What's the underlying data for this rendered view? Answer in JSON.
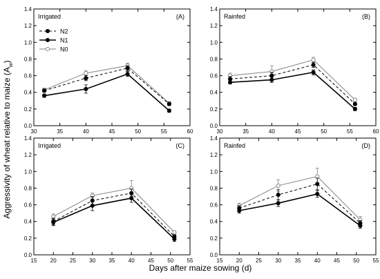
{
  "figure": {
    "ylabel": "Aggressivity of wheat relative to maize (A",
    "ylabel_sub": "w",
    "ylabel_end": ")",
    "xlabel": "Days after maize sowing (d)"
  },
  "legend": {
    "entries": [
      {
        "name": "N2",
        "style": "dashed",
        "marker": "filled",
        "color": "#000000"
      },
      {
        "name": "N1",
        "style": "solid-bold",
        "marker": "filled",
        "color": "#000000"
      },
      {
        "name": "N0",
        "style": "solid-thin",
        "marker": "open",
        "color": "#808080"
      }
    ]
  },
  "chart_data": [
    {
      "type": "line",
      "label": "(A)",
      "condition": "Irrigated",
      "x": [
        32,
        40,
        48,
        56
      ],
      "xlim": [
        30,
        60
      ],
      "xticks": [
        30,
        35,
        40,
        45,
        50,
        55,
        60
      ],
      "ylim": [
        0.0,
        1.4
      ],
      "yticks": [
        "0.0",
        "0.2",
        "0.4",
        "0.6",
        "0.8",
        "1.0",
        "1.2",
        "1.4"
      ],
      "series": [
        {
          "name": "N2",
          "values": [
            0.42,
            0.57,
            0.69,
            0.26
          ],
          "err": [
            0.02,
            0.03,
            0.03,
            0.02
          ]
        },
        {
          "name": "N1",
          "values": [
            0.36,
            0.44,
            0.62,
            0.18
          ],
          "err": [
            0.02,
            0.05,
            0.03,
            0.02
          ]
        },
        {
          "name": "N0",
          "values": [
            0.43,
            0.63,
            0.72,
            0.27
          ],
          "err": [
            0.02,
            0.03,
            0.03,
            0.02
          ]
        }
      ]
    },
    {
      "type": "line",
      "label": "(B)",
      "condition": "Rainfed",
      "x": [
        32,
        40,
        48,
        56
      ],
      "xlim": [
        30,
        60
      ],
      "xticks": [
        30,
        35,
        40,
        45,
        50,
        55,
        60
      ],
      "ylim": [
        0.0,
        1.4
      ],
      "yticks": [
        "0.0",
        "0.2",
        "0.4",
        "0.6",
        "0.8",
        "1.0",
        "1.2",
        "1.4"
      ],
      "series": [
        {
          "name": "N2",
          "values": [
            0.56,
            0.6,
            0.73,
            0.26
          ],
          "err": [
            0.03,
            0.04,
            0.03,
            0.02
          ]
        },
        {
          "name": "N1",
          "values": [
            0.52,
            0.55,
            0.64,
            0.2
          ],
          "err": [
            0.02,
            0.03,
            0.03,
            0.02
          ]
        },
        {
          "name": "N0",
          "values": [
            0.6,
            0.65,
            0.79,
            0.31
          ],
          "err": [
            0.03,
            0.07,
            0.03,
            0.02
          ]
        }
      ]
    },
    {
      "type": "line",
      "label": "(C)",
      "condition": "Irrigated",
      "x": [
        20,
        30,
        40,
        51
      ],
      "xlim": [
        15,
        55
      ],
      "xticks": [
        15,
        20,
        25,
        30,
        35,
        40,
        45,
        50,
        55
      ],
      "ylim": [
        0.0,
        1.4
      ],
      "yticks": [
        "0.0",
        "0.2",
        "0.4",
        "0.6",
        "0.8",
        "1.0",
        "1.2",
        "1.4"
      ],
      "series": [
        {
          "name": "N2",
          "values": [
            0.4,
            0.65,
            0.74,
            0.22
          ],
          "err": [
            0.04,
            0.05,
            0.05,
            0.02
          ]
        },
        {
          "name": "N1",
          "values": [
            0.39,
            0.59,
            0.68,
            0.19
          ],
          "err": [
            0.04,
            0.06,
            0.05,
            0.03
          ]
        },
        {
          "name": "N0",
          "values": [
            0.46,
            0.71,
            0.8,
            0.27
          ],
          "err": [
            0.03,
            0.03,
            0.09,
            0.02
          ]
        }
      ]
    },
    {
      "type": "line",
      "label": "(D)",
      "condition": "Rainfed",
      "x": [
        20,
        30,
        40,
        51
      ],
      "xlim": [
        15,
        55
      ],
      "xticks": [
        15,
        20,
        25,
        30,
        35,
        40,
        45,
        50,
        55
      ],
      "ylim": [
        0.0,
        1.4
      ],
      "yticks": [
        "0.0",
        "0.2",
        "0.4",
        "0.6",
        "0.8",
        "1.0",
        "1.2",
        "1.4"
      ],
      "series": [
        {
          "name": "N2",
          "values": [
            0.56,
            0.72,
            0.85,
            0.38
          ],
          "err": [
            0.03,
            0.06,
            0.07,
            0.03
          ]
        },
        {
          "name": "N1",
          "values": [
            0.53,
            0.62,
            0.73,
            0.35
          ],
          "err": [
            0.03,
            0.04,
            0.04,
            0.03
          ]
        },
        {
          "name": "N0",
          "values": [
            0.59,
            0.83,
            0.94,
            0.42
          ],
          "err": [
            0.03,
            0.07,
            0.1,
            0.04
          ]
        }
      ]
    }
  ]
}
